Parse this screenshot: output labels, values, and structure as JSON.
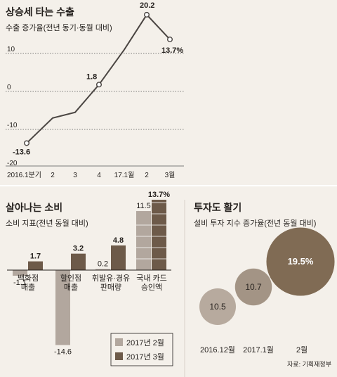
{
  "colors": {
    "background": "#f4f0ea",
    "line": "#4a4542",
    "feb": "#b2a79e",
    "mar": "#6d5a49",
    "bubble_small": "#b7aa9e",
    "bubble_mid": "#a39485",
    "bubble_big": "#806b54",
    "grid": "#555555"
  },
  "chart_data": [
    {
      "type": "line",
      "title": "상승세 타는 수출",
      "subtitle": "수출 증가율(전년 동기·동월 대비)",
      "categories": [
        "2016.1분기",
        "2",
        "3",
        "4",
        "17.1월",
        "2",
        "3월"
      ],
      "x": [
        "2016.Q1",
        "2016.Q2",
        "2016.Q3",
        "2016.Q4",
        "2017.01",
        "2017.02",
        "2017.03"
      ],
      "values": [
        -13.6,
        -7.0,
        -5.5,
        1.8,
        11.0,
        20.2,
        13.7
      ],
      "labeled_points": [
        {
          "index": 0,
          "label": "-13.6"
        },
        {
          "index": 3,
          "label": "1.8"
        },
        {
          "index": 5,
          "label": "20.2"
        },
        {
          "index": 6,
          "label": "13.7%"
        }
      ],
      "y_ticks": [
        10,
        0,
        -10,
        -20
      ],
      "ylim": [
        -20,
        25
      ],
      "grid": "dashed horizontal at 10, 0, -10"
    },
    {
      "type": "bar",
      "title": "살아나는 소비",
      "subtitle": "소비 지표(전년 동월 대비)",
      "categories": [
        {
          "lines": [
            "백화점",
            "매출"
          ]
        },
        {
          "lines": [
            "할인점",
            "매출"
          ]
        },
        {
          "lines": [
            "휘발유·경유",
            "판매량"
          ]
        },
        {
          "lines": [
            "국내 카드",
            "승인액"
          ]
        }
      ],
      "series": [
        {
          "name": "2017년 2월",
          "values": [
            -1.1,
            -14.6,
            0.2,
            11.5
          ],
          "labels": [
            "-1.1",
            "-14.6",
            "0.2",
            "11.5"
          ]
        },
        {
          "name": "2017년 3월",
          "values": [
            1.7,
            3.2,
            4.8,
            13.7
          ],
          "labels": [
            "1.7",
            "3.2",
            "4.8",
            "13.7%"
          ]
        }
      ],
      "legend": "bottom-right"
    },
    {
      "type": "bubble",
      "title": "투자도 활기",
      "subtitle": "설비 투자 지수 증가율(전년 동월 대비)",
      "categories": [
        "2016.12월",
        "2017.1월",
        "2월"
      ],
      "values": [
        10.5,
        10.7,
        19.5
      ],
      "labels": [
        "10.5",
        "10.7",
        "19.5%"
      ],
      "source": "자료: 기획재정부"
    }
  ]
}
